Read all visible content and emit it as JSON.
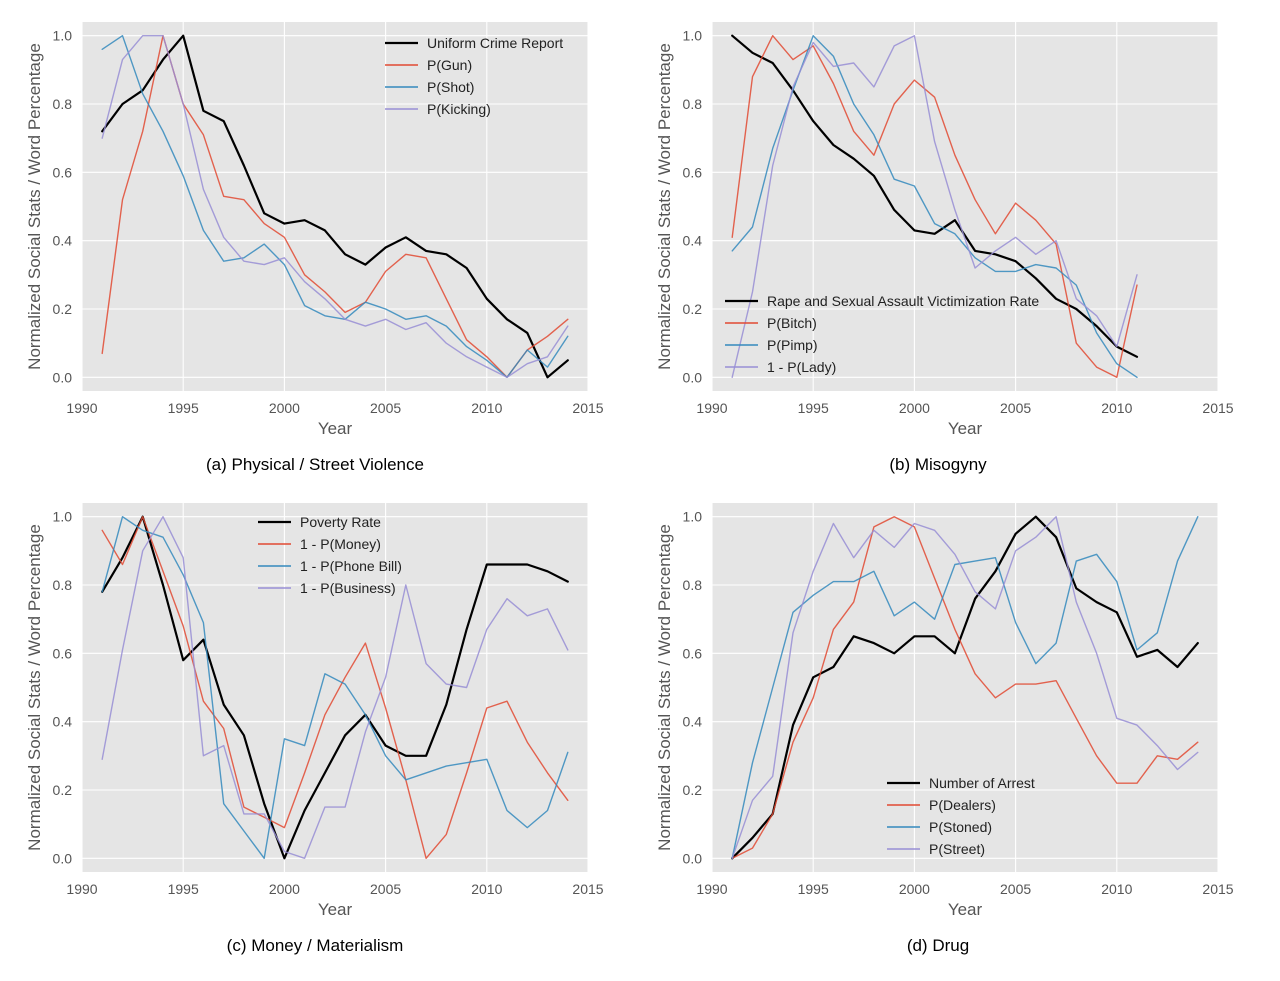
{
  "chart_data": [
    {
      "type": "line",
      "caption": "(a) Physical / Street Violence",
      "xlabel": "Year",
      "ylabel": "Normalized Social Stats / Word Percentage",
      "xlim": [
        1990,
        2015
      ],
      "ylim": [
        -0.04,
        1.04
      ],
      "xticks": [
        1990,
        1995,
        2000,
        2005,
        2010,
        2015
      ],
      "yticks": [
        "0.0",
        "0.2",
        "0.4",
        "0.6",
        "0.8",
        "1.0"
      ],
      "legend_position": "top-right",
      "series": [
        {
          "name": "Uniform Crime Report",
          "color": "#000000",
          "x": [
            1991,
            1992,
            1993,
            1994,
            1995,
            1996,
            1997,
            1998,
            1999,
            2000,
            2001,
            2002,
            2003,
            2004,
            2005,
            2006,
            2007,
            2008,
            2009,
            2010,
            2011,
            2012,
            2013,
            2014
          ],
          "values": [
            0.72,
            0.8,
            0.84,
            0.93,
            1.0,
            0.78,
            0.75,
            0.62,
            0.48,
            0.45,
            0.46,
            0.43,
            0.36,
            0.33,
            0.38,
            0.41,
            0.37,
            0.36,
            0.32,
            0.23,
            0.17,
            0.13,
            0.0,
            0.05
          ]
        },
        {
          "name": "P(Gun)",
          "color": "#E24A33",
          "x": [
            1991,
            1992,
            1993,
            1994,
            1995,
            1996,
            1997,
            1998,
            1999,
            2000,
            2001,
            2002,
            2003,
            2004,
            2005,
            2006,
            2007,
            2008,
            2009,
            2010,
            2011,
            2012,
            2013,
            2014
          ],
          "values": [
            0.07,
            0.52,
            0.72,
            1.0,
            0.8,
            0.71,
            0.53,
            0.52,
            0.45,
            0.41,
            0.3,
            0.25,
            0.19,
            0.22,
            0.31,
            0.36,
            0.35,
            0.23,
            0.11,
            0.06,
            0.0,
            0.08,
            0.12,
            0.17
          ]
        },
        {
          "name": "P(Shot)",
          "color": "#348ABD",
          "x": [
            1991,
            1992,
            1993,
            1994,
            1995,
            1996,
            1997,
            1998,
            1999,
            2000,
            2001,
            2002,
            2003,
            2004,
            2005,
            2006,
            2007,
            2008,
            2009,
            2010,
            2011,
            2012,
            2013,
            2014
          ],
          "values": [
            0.96,
            1.0,
            0.83,
            0.72,
            0.59,
            0.43,
            0.34,
            0.35,
            0.39,
            0.33,
            0.21,
            0.18,
            0.17,
            0.22,
            0.2,
            0.17,
            0.18,
            0.15,
            0.09,
            0.05,
            0.0,
            0.08,
            0.03,
            0.12
          ]
        },
        {
          "name": "P(Kicking)",
          "color": "#988ED5",
          "x": [
            1991,
            1992,
            1993,
            1994,
            1995,
            1996,
            1997,
            1998,
            1999,
            2000,
            2001,
            2002,
            2003,
            2004,
            2005,
            2006,
            2007,
            2008,
            2009,
            2010,
            2011,
            2012,
            2013,
            2014
          ],
          "values": [
            0.7,
            0.93,
            1.0,
            1.0,
            0.8,
            0.55,
            0.41,
            0.34,
            0.33,
            0.35,
            0.28,
            0.23,
            0.17,
            0.15,
            0.17,
            0.14,
            0.16,
            0.1,
            0.06,
            0.03,
            0.0,
            0.04,
            0.06,
            0.15
          ]
        }
      ]
    },
    {
      "type": "line",
      "caption": "(b) Misogyny",
      "xlabel": "Year",
      "ylabel": "Normalized Social Stats / Word Percentage",
      "xlim": [
        1990,
        2015
      ],
      "ylim": [
        -0.04,
        1.04
      ],
      "xticks": [
        1990,
        1995,
        2000,
        2005,
        2010,
        2015
      ],
      "yticks": [
        "0.0",
        "0.2",
        "0.4",
        "0.6",
        "0.8",
        "1.0"
      ],
      "legend_position": "lower-left",
      "series": [
        {
          "name": "Rape and Sexual Assault Victimization Rate",
          "color": "#000000",
          "x": [
            1991,
            1992,
            1993,
            1994,
            1995,
            1996,
            1997,
            1998,
            1999,
            2000,
            2001,
            2002,
            2003,
            2004,
            2005,
            2006,
            2007,
            2008,
            2009,
            2010,
            2011
          ],
          "values": [
            1.0,
            0.95,
            0.92,
            0.84,
            0.75,
            0.68,
            0.64,
            0.59,
            0.49,
            0.43,
            0.42,
            0.46,
            0.37,
            0.36,
            0.34,
            0.29,
            0.23,
            0.2,
            0.15,
            0.09,
            0.06
          ]
        },
        {
          "name": "P(Bitch)",
          "color": "#E24A33",
          "x": [
            1991,
            1992,
            1993,
            1994,
            1995,
            1996,
            1997,
            1998,
            1999,
            2000,
            2001,
            2002,
            2003,
            2004,
            2005,
            2006,
            2007,
            2008,
            2009,
            2010,
            2011
          ],
          "values": [
            0.41,
            0.88,
            1.0,
            0.93,
            0.97,
            0.86,
            0.72,
            0.65,
            0.8,
            0.87,
            0.82,
            0.65,
            0.52,
            0.42,
            0.51,
            0.46,
            0.39,
            0.1,
            0.03,
            0.0,
            0.27
          ]
        },
        {
          "name": "P(Pimp)",
          "color": "#348ABD",
          "x": [
            1991,
            1992,
            1993,
            1994,
            1995,
            1996,
            1997,
            1998,
            1999,
            2000,
            2001,
            2002,
            2003,
            2004,
            2005,
            2006,
            2007,
            2008,
            2009,
            2010,
            2011
          ],
          "values": [
            0.37,
            0.44,
            0.67,
            0.84,
            1.0,
            0.94,
            0.8,
            0.71,
            0.58,
            0.56,
            0.45,
            0.42,
            0.35,
            0.31,
            0.31,
            0.33,
            0.32,
            0.27,
            0.13,
            0.04,
            0.0
          ]
        },
        {
          "name": "1 - P(Lady)",
          "color": "#988ED5",
          "x": [
            1991,
            1992,
            1993,
            1994,
            1995,
            1996,
            1997,
            1998,
            1999,
            2000,
            2001,
            2002,
            2003,
            2004,
            2005,
            2006,
            2007,
            2008,
            2009,
            2010,
            2011
          ],
          "values": [
            0.0,
            0.25,
            0.62,
            0.85,
            0.98,
            0.91,
            0.92,
            0.85,
            0.97,
            1.0,
            0.69,
            0.49,
            0.32,
            0.37,
            0.41,
            0.36,
            0.4,
            0.23,
            0.18,
            0.09,
            0.3
          ]
        }
      ]
    },
    {
      "type": "line",
      "caption": "(c) Money / Materialism",
      "xlabel": "Year",
      "ylabel": "Normalized Social Stats / Word Percentage",
      "xlim": [
        1990,
        2015
      ],
      "ylim": [
        -0.04,
        1.04
      ],
      "xticks": [
        1990,
        1995,
        2000,
        2005,
        2010,
        2015
      ],
      "yticks": [
        "0.0",
        "0.2",
        "0.4",
        "0.6",
        "0.8",
        "1.0"
      ],
      "legend_position": "top-center",
      "series": [
        {
          "name": "Poverty Rate",
          "color": "#000000",
          "x": [
            1991,
            1992,
            1993,
            1994,
            1995,
            1996,
            1997,
            1998,
            1999,
            2000,
            2001,
            2002,
            2003,
            2004,
            2005,
            2006,
            2007,
            2008,
            2009,
            2010,
            2011,
            2012,
            2013,
            2014
          ],
          "values": [
            0.78,
            0.88,
            1.0,
            0.8,
            0.58,
            0.64,
            0.45,
            0.36,
            0.16,
            0.0,
            0.14,
            0.25,
            0.36,
            0.42,
            0.33,
            0.3,
            0.3,
            0.45,
            0.67,
            0.86,
            0.86,
            0.86,
            0.84,
            0.81
          ]
        },
        {
          "name": "1 - P(Money)",
          "color": "#E24A33",
          "x": [
            1991,
            1992,
            1993,
            1994,
            1995,
            1996,
            1997,
            1998,
            1999,
            2000,
            2001,
            2002,
            2003,
            2004,
            2005,
            2006,
            2007,
            2008,
            2009,
            2010,
            2011,
            2012,
            2013,
            2014
          ],
          "values": [
            0.96,
            0.86,
            1.0,
            0.84,
            0.68,
            0.46,
            0.38,
            0.15,
            0.12,
            0.09,
            0.25,
            0.42,
            0.53,
            0.63,
            0.44,
            0.23,
            0.0,
            0.07,
            0.25,
            0.44,
            0.46,
            0.34,
            0.25,
            0.17
          ]
        },
        {
          "name": "1 - P(Phone Bill)",
          "color": "#348ABD",
          "x": [
            1991,
            1992,
            1993,
            1994,
            1995,
            1996,
            1997,
            1998,
            1999,
            2000,
            2001,
            2002,
            2003,
            2004,
            2005,
            2006,
            2007,
            2008,
            2009,
            2010,
            2011,
            2012,
            2013,
            2014
          ],
          "values": [
            0.78,
            1.0,
            0.96,
            0.94,
            0.83,
            0.69,
            0.16,
            0.08,
            0.0,
            0.35,
            0.33,
            0.54,
            0.51,
            0.42,
            0.3,
            0.23,
            0.25,
            0.27,
            0.28,
            0.29,
            0.14,
            0.09,
            0.14,
            0.31
          ]
        },
        {
          "name": "1 - P(Business)",
          "color": "#988ED5",
          "x": [
            1991,
            1992,
            1993,
            1994,
            1995,
            1996,
            1997,
            1998,
            1999,
            2000,
            2001,
            2002,
            2003,
            2004,
            2005,
            2006,
            2007,
            2008,
            2009,
            2010,
            2011,
            2012,
            2013,
            2014
          ],
          "values": [
            0.29,
            0.61,
            0.9,
            1.0,
            0.88,
            0.3,
            0.33,
            0.13,
            0.13,
            0.02,
            0.0,
            0.15,
            0.15,
            0.37,
            0.53,
            0.8,
            0.57,
            0.51,
            0.5,
            0.67,
            0.76,
            0.71,
            0.73,
            0.61
          ]
        }
      ]
    },
    {
      "type": "line",
      "caption": "(d) Drug",
      "xlabel": "Year",
      "ylabel": "Normalized Social Stats / Word Percentage",
      "xlim": [
        1990,
        2015
      ],
      "ylim": [
        -0.04,
        1.04
      ],
      "xticks": [
        1990,
        1995,
        2000,
        2005,
        2010,
        2015
      ],
      "yticks": [
        "0.0",
        "0.2",
        "0.4",
        "0.6",
        "0.8",
        "1.0"
      ],
      "legend_position": "lower-center",
      "series": [
        {
          "name": "Number of Arrest",
          "color": "#000000",
          "x": [
            1991,
            1992,
            1993,
            1994,
            1995,
            1996,
            1997,
            1998,
            1999,
            2000,
            2001,
            2002,
            2003,
            2004,
            2005,
            2006,
            2007,
            2008,
            2009,
            2010,
            2011,
            2012,
            2013,
            2014
          ],
          "values": [
            0.0,
            0.06,
            0.13,
            0.39,
            0.53,
            0.56,
            0.65,
            0.63,
            0.6,
            0.65,
            0.65,
            0.6,
            0.76,
            0.84,
            0.95,
            1.0,
            0.94,
            0.79,
            0.75,
            0.72,
            0.59,
            0.61,
            0.56,
            0.63
          ]
        },
        {
          "name": "P(Dealers)",
          "color": "#E24A33",
          "x": [
            1991,
            1992,
            1993,
            1994,
            1995,
            1996,
            1997,
            1998,
            1999,
            2000,
            2001,
            2002,
            2003,
            2004,
            2005,
            2006,
            2007,
            2008,
            2009,
            2010,
            2011,
            2012,
            2013,
            2014
          ],
          "values": [
            0.0,
            0.03,
            0.13,
            0.34,
            0.47,
            0.67,
            0.75,
            0.97,
            1.0,
            0.97,
            0.82,
            0.67,
            0.54,
            0.47,
            0.51,
            0.51,
            0.52,
            0.41,
            0.3,
            0.22,
            0.22,
            0.3,
            0.29,
            0.34
          ]
        },
        {
          "name": "P(Stoned)",
          "color": "#348ABD",
          "x": [
            1991,
            1992,
            1993,
            1994,
            1995,
            1996,
            1997,
            1998,
            1999,
            2000,
            2001,
            2002,
            2003,
            2004,
            2005,
            2006,
            2007,
            2008,
            2009,
            2010,
            2011,
            2012,
            2013,
            2014
          ],
          "values": [
            0.0,
            0.28,
            0.5,
            0.72,
            0.77,
            0.81,
            0.81,
            0.84,
            0.71,
            0.75,
            0.7,
            0.86,
            0.87,
            0.88,
            0.69,
            0.57,
            0.63,
            0.87,
            0.89,
            0.81,
            0.61,
            0.66,
            0.87,
            1.0
          ]
        },
        {
          "name": "P(Street)",
          "color": "#988ED5",
          "x": [
            1991,
            1992,
            1993,
            1994,
            1995,
            1996,
            1997,
            1998,
            1999,
            2000,
            2001,
            2002,
            2003,
            2004,
            2005,
            2006,
            2007,
            2008,
            2009,
            2010,
            2011,
            2012,
            2013,
            2014
          ],
          "values": [
            0.0,
            0.17,
            0.24,
            0.66,
            0.84,
            0.98,
            0.88,
            0.96,
            0.91,
            0.98,
            0.96,
            0.89,
            0.78,
            0.73,
            0.9,
            0.94,
            1.0,
            0.75,
            0.6,
            0.41,
            0.39,
            0.33,
            0.26,
            0.31
          ]
        }
      ]
    }
  ]
}
